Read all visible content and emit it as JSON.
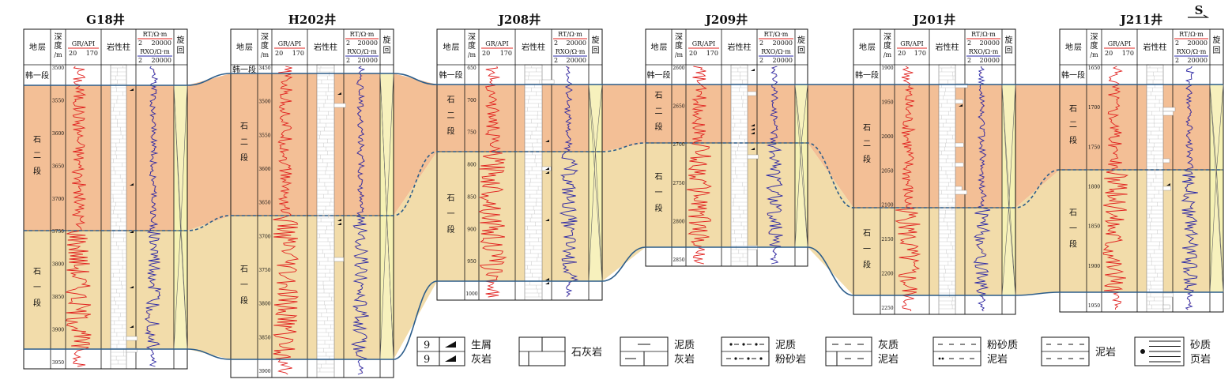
{
  "direction": "S",
  "column_headers": {
    "strata": [
      "地",
      "层"
    ],
    "depth": [
      "深",
      "度",
      "/m"
    ],
    "gr": "GR/API",
    "gr_range": [
      "20",
      "170"
    ],
    "lith": "岩性柱",
    "rt": "RT/Ω·m",
    "rt_range": [
      "2",
      "20000"
    ],
    "rxo": "RXO/Ω·m",
    "rxo_range": [
      "2",
      "20000"
    ],
    "cycle": [
      "旋",
      "回"
    ]
  },
  "strata_names": {
    "han1": "韩一段",
    "shi2": [
      "石",
      "二",
      "段"
    ],
    "shi1": [
      "石",
      "一",
      "段"
    ]
  },
  "colors": {
    "shi2": "#f3bf96",
    "shi1": "#f2dcaa",
    "cycle": "#f6f2b4",
    "gr_curve": "#e0201e",
    "res_curve": "#2a2aa8",
    "boundary": "#2c5d8a"
  },
  "wells": [
    {
      "name": "G18井",
      "depths": [
        "3500",
        "3550",
        "3600",
        "3650",
        "3700",
        "3750",
        "3800",
        "3850",
        "3900",
        "3950"
      ]
    },
    {
      "name": "H202井",
      "depths": [
        "3450",
        "3500",
        "3550",
        "3600",
        "3650",
        "3700",
        "3750",
        "3800",
        "3850",
        "3900"
      ]
    },
    {
      "name": "J208井",
      "depths": [
        "650",
        "700",
        "750",
        "800",
        "850",
        "900",
        "950",
        "1000"
      ]
    },
    {
      "name": "J209井",
      "depths": [
        "2600",
        "2650",
        "2700",
        "2750",
        "2800",
        "2850"
      ]
    },
    {
      "name": "J201井",
      "depths": [
        "1900",
        "1950",
        "2000",
        "2050",
        "2100",
        "2150",
        "2200",
        "2250"
      ]
    },
    {
      "name": "J211井",
      "depths": [
        "1650",
        "1700",
        "1750",
        "1800",
        "1850",
        "1900",
        "1950"
      ]
    }
  ],
  "legend": [
    {
      "key": "bioclastic",
      "lines": [
        "生屑",
        "灰岩"
      ]
    },
    {
      "key": "limestone",
      "lines": [
        "石灰岩"
      ]
    },
    {
      "key": "argillaceous_limestone",
      "lines": [
        "泥质",
        "灰岩"
      ]
    },
    {
      "key": "argillaceous_siltstone",
      "lines": [
        "泥质",
        "粉砂岩"
      ]
    },
    {
      "key": "calcareous_mudstone",
      "lines": [
        "灰质",
        "泥岩"
      ]
    },
    {
      "key": "silty_mudstone",
      "lines": [
        "粉砂质",
        "泥岩"
      ]
    },
    {
      "key": "mudstone",
      "lines": [
        "泥岩"
      ]
    },
    {
      "key": "sandy_shale",
      "lines": [
        "砂质",
        "页岩"
      ]
    }
  ]
}
